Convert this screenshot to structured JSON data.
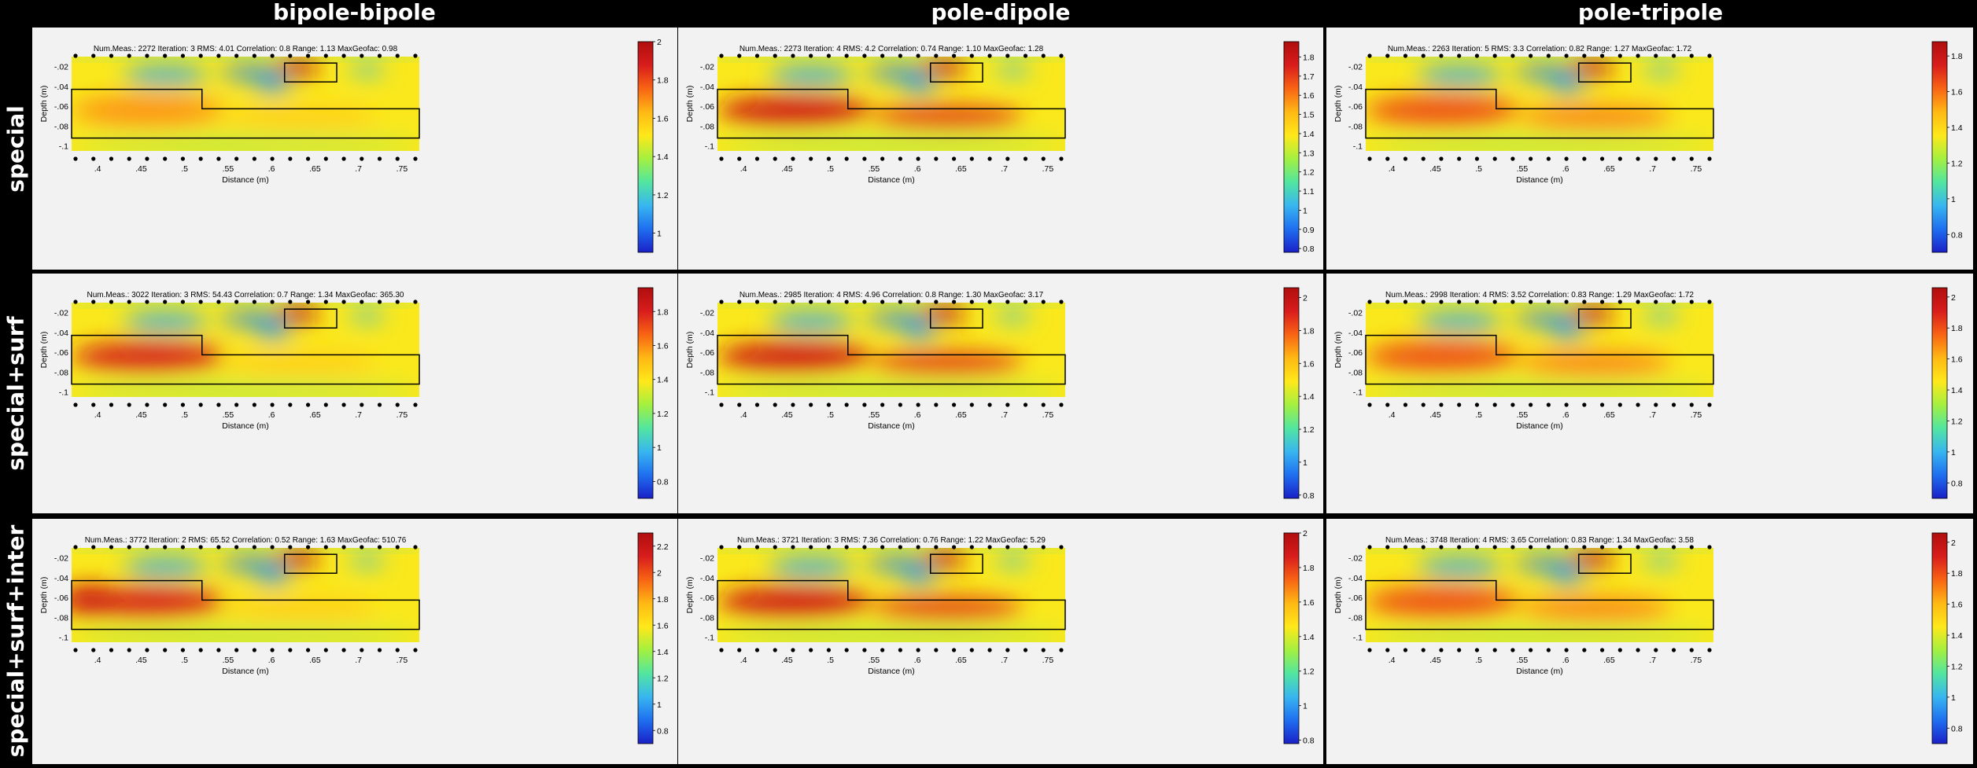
{
  "columns": [
    "bipole-bipole",
    "pole-dipole",
    "pole-tripole"
  ],
  "rows": [
    "special",
    "special+surf",
    "special+surf+inter"
  ],
  "axis_labels": {
    "x": "Distance (m)",
    "y": "Depth (m)"
  },
  "stat_labels": {
    "num_meas": "Num.Meas.:",
    "iteration": "Iteration:",
    "rms": "RMS:",
    "correlation": "Correlation:",
    "range": "Range:",
    "max_geofac": "MaxGeofac:"
  },
  "colormap": [
    "#1a20c8",
    "#1f6ff0",
    "#38b6f0",
    "#52e6a0",
    "#a4f040",
    "#ffe81a",
    "#ffb814",
    "#f86414",
    "#d81c1c",
    "#b00e0e"
  ],
  "chart_data": [
    {
      "type": "heatmap",
      "row": "special",
      "column": "bipole-bipole",
      "stats": {
        "num_meas": "2272",
        "iteration": "3",
        "rms": "4.01",
        "correlation": "0.8",
        "range": "1.13",
        "max_geofac": "0.98"
      },
      "xlim": [
        0.37,
        0.77
      ],
      "ylim": [
        -0.105,
        -0.01
      ],
      "x_ticks": [
        0.4,
        0.45,
        0.5,
        0.55,
        0.6,
        0.65,
        0.7,
        0.75
      ],
      "y_ticks": [
        -0.02,
        -0.04,
        -0.06,
        -0.08,
        -0.1
      ],
      "colorbar": {
        "min": 0.9,
        "max": 2.0,
        "ticks": [
          1,
          1.2,
          1.4,
          1.6,
          1.8,
          2
        ]
      }
    },
    {
      "type": "heatmap",
      "row": "special",
      "column": "pole-dipole",
      "stats": {
        "num_meas": "2273",
        "iteration": "4",
        "rms": "4.2",
        "correlation": "0.74",
        "range": "1.10",
        "max_geofac": "1.28"
      },
      "xlim": [
        0.37,
        0.77
      ],
      "ylim": [
        -0.105,
        -0.01
      ],
      "x_ticks": [
        0.4,
        0.45,
        0.5,
        0.55,
        0.6,
        0.65,
        0.7,
        0.75
      ],
      "y_ticks": [
        -0.02,
        -0.04,
        -0.06,
        -0.08,
        -0.1
      ],
      "colorbar": {
        "min": 0.78,
        "max": 1.88,
        "ticks": [
          0.8,
          0.9,
          1,
          1.1,
          1.2,
          1.3,
          1.4,
          1.5,
          1.6,
          1.7,
          1.8
        ]
      }
    },
    {
      "type": "heatmap",
      "row": "special",
      "column": "pole-tripole",
      "stats": {
        "num_meas": "2263",
        "iteration": "5",
        "rms": "3.3",
        "correlation": "0.82",
        "range": "1.27",
        "max_geofac": "1.72"
      },
      "xlim": [
        0.37,
        0.77
      ],
      "ylim": [
        -0.105,
        -0.01
      ],
      "x_ticks": [
        0.4,
        0.45,
        0.5,
        0.55,
        0.6,
        0.65,
        0.7,
        0.75
      ],
      "y_ticks": [
        -0.02,
        -0.04,
        -0.06,
        -0.08,
        -0.1
      ],
      "colorbar": {
        "min": 0.7,
        "max": 1.88,
        "ticks": [
          0.8,
          1,
          1.2,
          1.4,
          1.6,
          1.8
        ]
      }
    },
    {
      "type": "heatmap",
      "row": "special+surf",
      "column": "bipole-bipole",
      "stats": {
        "num_meas": "3022",
        "iteration": "3",
        "rms": "54.43",
        "correlation": "0.7",
        "range": "1.34",
        "max_geofac": "365.30"
      },
      "xlim": [
        0.37,
        0.77
      ],
      "ylim": [
        -0.105,
        -0.01
      ],
      "x_ticks": [
        0.4,
        0.45,
        0.5,
        0.55,
        0.6,
        0.65,
        0.7,
        0.75
      ],
      "y_ticks": [
        -0.02,
        -0.04,
        -0.06,
        -0.08,
        -0.1
      ],
      "colorbar": {
        "min": 0.7,
        "max": 1.94,
        "ticks": [
          0.8,
          1,
          1.2,
          1.4,
          1.6,
          1.8
        ]
      }
    },
    {
      "type": "heatmap",
      "row": "special+surf",
      "column": "pole-dipole",
      "stats": {
        "num_meas": "2985",
        "iteration": "4",
        "rms": "4.96",
        "correlation": "0.8",
        "range": "1.30",
        "max_geofac": "3.17"
      },
      "xlim": [
        0.37,
        0.77
      ],
      "ylim": [
        -0.105,
        -0.01
      ],
      "x_ticks": [
        0.4,
        0.45,
        0.5,
        0.55,
        0.6,
        0.65,
        0.7,
        0.75
      ],
      "y_ticks": [
        -0.02,
        -0.04,
        -0.06,
        -0.08,
        -0.1
      ],
      "colorbar": {
        "min": 0.78,
        "max": 2.06,
        "ticks": [
          0.8,
          1,
          1.2,
          1.4,
          1.6,
          1.8,
          2
        ]
      }
    },
    {
      "type": "heatmap",
      "row": "special+surf",
      "column": "pole-tripole",
      "stats": {
        "num_meas": "2998",
        "iteration": "4",
        "rms": "3.52",
        "correlation": "0.83",
        "range": "1.29",
        "max_geofac": "1.72"
      },
      "xlim": [
        0.37,
        0.77
      ],
      "ylim": [
        -0.105,
        -0.01
      ],
      "x_ticks": [
        0.4,
        0.45,
        0.5,
        0.55,
        0.6,
        0.65,
        0.7,
        0.75
      ],
      "y_ticks": [
        -0.02,
        -0.04,
        -0.06,
        -0.08,
        -0.1
      ],
      "colorbar": {
        "min": 0.7,
        "max": 2.06,
        "ticks": [
          0.8,
          1,
          1.2,
          1.4,
          1.6,
          1.8,
          2
        ]
      }
    },
    {
      "type": "heatmap",
      "row": "special+surf+inter",
      "column": "bipole-bipole",
      "stats": {
        "num_meas": "3772",
        "iteration": "2",
        "rms": "65.52",
        "correlation": "0.52",
        "range": "1.63",
        "max_geofac": "510.76"
      },
      "xlim": [
        0.37,
        0.77
      ],
      "ylim": [
        -0.105,
        -0.01
      ],
      "x_ticks": [
        0.4,
        0.45,
        0.5,
        0.55,
        0.6,
        0.65,
        0.7,
        0.75
      ],
      "y_ticks": [
        -0.02,
        -0.04,
        -0.06,
        -0.08,
        -0.1
      ],
      "colorbar": {
        "min": 0.7,
        "max": 2.3,
        "ticks": [
          0.8,
          1,
          1.2,
          1.4,
          1.6,
          1.8,
          2,
          2.2
        ]
      }
    },
    {
      "type": "heatmap",
      "row": "special+surf+inter",
      "column": "pole-dipole",
      "stats": {
        "num_meas": "3721",
        "iteration": "3",
        "rms": "7.36",
        "correlation": "0.76",
        "range": "1.22",
        "max_geofac": "5.29"
      },
      "xlim": [
        0.37,
        0.77
      ],
      "ylim": [
        -0.105,
        -0.01
      ],
      "x_ticks": [
        0.4,
        0.45,
        0.5,
        0.55,
        0.6,
        0.65,
        0.7,
        0.75
      ],
      "y_ticks": [
        -0.02,
        -0.04,
        -0.06,
        -0.08,
        -0.1
      ],
      "colorbar": {
        "min": 0.78,
        "max": 2.0,
        "ticks": [
          0.8,
          1,
          1.2,
          1.4,
          1.6,
          1.8,
          2
        ]
      }
    },
    {
      "type": "heatmap",
      "row": "special+surf+inter",
      "column": "pole-tripole",
      "stats": {
        "num_meas": "3748",
        "iteration": "4",
        "rms": "3.65",
        "correlation": "0.83",
        "range": "1.34",
        "max_geofac": "3.58"
      },
      "xlim": [
        0.37,
        0.77
      ],
      "ylim": [
        -0.105,
        -0.01
      ],
      "x_ticks": [
        0.4,
        0.45,
        0.5,
        0.55,
        0.6,
        0.65,
        0.7,
        0.75
      ],
      "y_ticks": [
        -0.02,
        -0.04,
        -0.06,
        -0.08,
        -0.1
      ],
      "colorbar": {
        "min": 0.7,
        "max": 2.06,
        "ticks": [
          0.8,
          1,
          1.2,
          1.4,
          1.6,
          1.8,
          2
        ]
      }
    }
  ]
}
